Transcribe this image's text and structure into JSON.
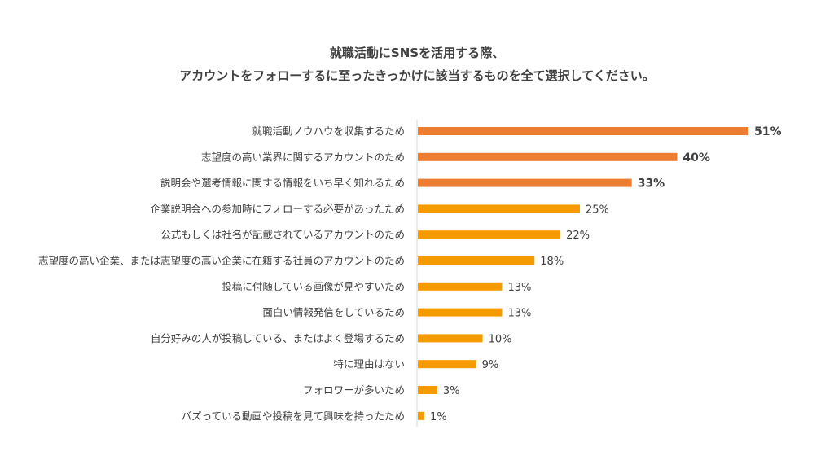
{
  "chart_data": {
    "type": "bar",
    "orientation": "horizontal",
    "title": [
      "就職活動にSNSを活用する際、",
      "アカウントをフォローするに至ったきっかけに該当するものを全て選択してください。"
    ],
    "categories": [
      "就職活動ノウハウを収集するため",
      "志望度の高い業界に関するアカウントのため",
      "説明会や選考情報に関する情報をいち早く知れるため",
      "企業説明会への参加時にフォローする必要があったため",
      "公式もしくは社名が記載されているアカウントのため",
      "志望度の高い企業、または志望度の高い企業に在籍する社員のアカウントのため",
      "投稿に付随している画像が見やすいため",
      "面白い情報発信をしているため",
      "自分好みの人が投稿している、またはよく登場するため",
      "特に理由はない",
      "フォロワーが多いため",
      "バズっている動画や投稿を見て興味を持ったため"
    ],
    "values": [
      51,
      40,
      33,
      25,
      22,
      18,
      13,
      13,
      10,
      9,
      3,
      1
    ],
    "value_labels": [
      "51%",
      "40%",
      "33%",
      "25%",
      "22%",
      "18%",
      "13%",
      "13%",
      "10%",
      "9%",
      "3%",
      "1%"
    ],
    "highlight_top": 3,
    "colors": {
      "highlight": "#ED7D31",
      "normal": "#F59B00",
      "label": "#404040",
      "axis": "#D9D9D9"
    },
    "grid": false,
    "legend": "none"
  }
}
